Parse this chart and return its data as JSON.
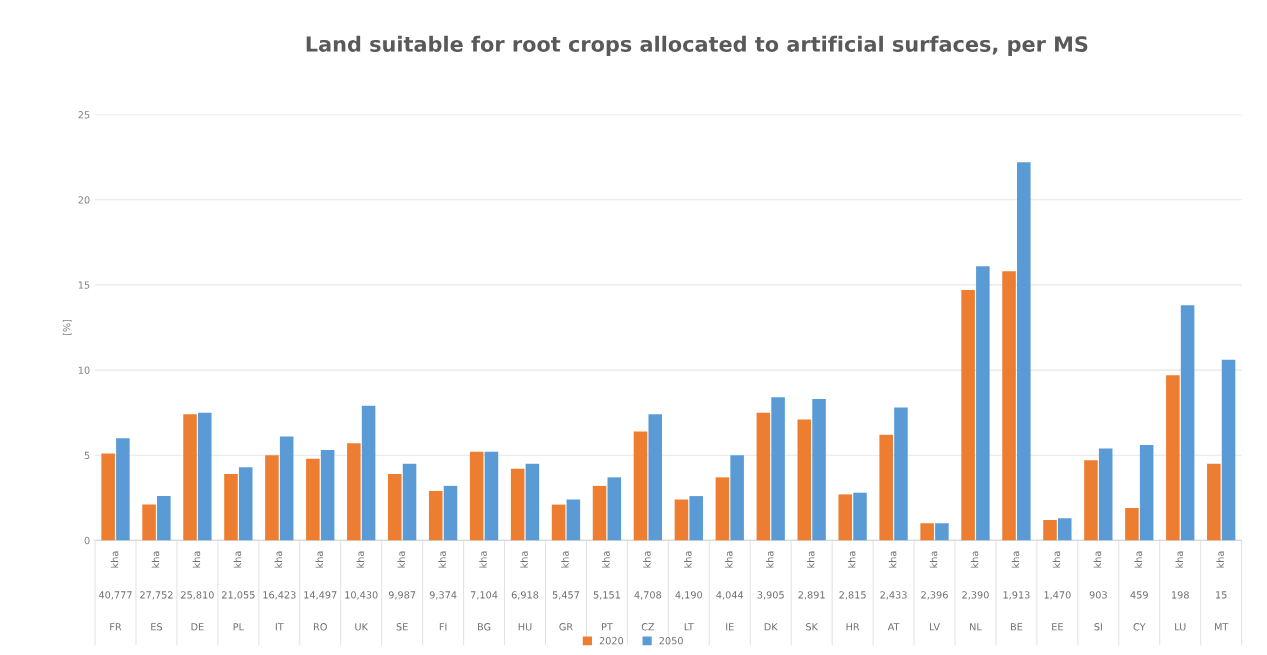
{
  "chart_data": {
    "type": "bar",
    "title": "Land suitable for root crops allocated to artificial surfaces, per MS",
    "ylabel": "[%]",
    "categories": [
      "kha\n40,777\nFR",
      "kha\n27,752\nES",
      "kha\n25,810\nDE",
      "kha\n21,055\nPL",
      "kha\n16,423\nIT",
      "kha\n14,497\nRO",
      "kha\n10,430\nUK",
      "kha\n9,987\nSE",
      "kha\n9,374\nFI",
      "kha\n7,104\nBG",
      "kha\n6,918\nHU",
      "kha\n5,457\nGR",
      "kha\n5,151\nPT",
      "kha\n4,708\nCZ",
      "kha\n4,190\nLT",
      "kha\n4,044\nIE",
      "kha\n3,905\nDK",
      "kha\n2,891\nSK",
      "kha\n2,815\nHR",
      "kha\n2,433\nAT",
      "kha\n2,396\nLV",
      "kha\n2,390\nNL",
      "kha\n1,913\nBE",
      "kha\n1,470\nEE",
      "kha\n903\nSI",
      "kha\n459\nCY",
      "kha\n198\nLU",
      "kha\n15\nMT"
    ],
    "series": [
      {
        "name": "2020",
        "color": "#ed7d31",
        "values": [
          5.1,
          2.1,
          7.4,
          3.9,
          5.0,
          4.8,
          5.7,
          3.9,
          2.9,
          5.2,
          4.2,
          2.1,
          3.2,
          6.4,
          2.4,
          3.7,
          7.5,
          7.1,
          2.7,
          6.2,
          1.0,
          14.7,
          15.8,
          1.2,
          4.7,
          1.9,
          9.7,
          4.5
        ]
      },
      {
        "name": "2050",
        "color": "#5b9bd5",
        "values": [
          6.0,
          2.6,
          7.5,
          4.3,
          6.1,
          5.3,
          7.9,
          4.5,
          3.2,
          5.2,
          4.5,
          2.4,
          3.7,
          7.4,
          2.6,
          5.0,
          8.4,
          8.3,
          2.8,
          7.8,
          1.0,
          16.1,
          22.2,
          1.3,
          5.4,
          5.6,
          13.8,
          10.6
        ]
      }
    ],
    "ylim": [
      0,
      25
    ],
    "yticks": [
      0,
      5,
      10,
      15,
      20,
      25
    ],
    "grid": "y",
    "legend": "bottom"
  }
}
